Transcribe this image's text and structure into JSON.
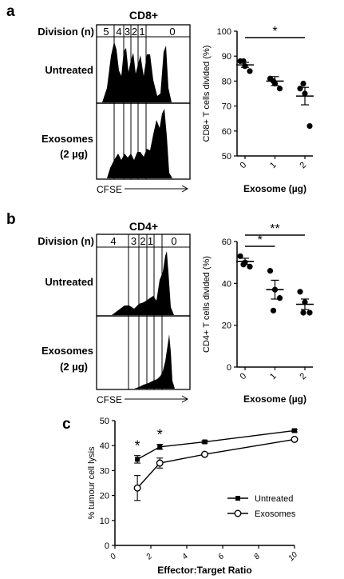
{
  "panels": {
    "a": {
      "letter": "a",
      "cell_label": "CD8+",
      "division_label": "Division (n)",
      "division_numbers": [
        "5",
        "4",
        "3",
        "2",
        "1",
        "0"
      ],
      "row_labels": {
        "untreated": "Untreated",
        "exosomes_line1": "Exosomes",
        "exosomes_line2": "(2 µg)"
      },
      "x_axis_label": "CFSE"
    },
    "b": {
      "letter": "b",
      "cell_label": "CD4+",
      "division_label": "Division (n)",
      "division_numbers": [
        "4",
        "3",
        "2",
        "1",
        "0"
      ],
      "row_labels": {
        "untreated": "Untreated",
        "exosomes_line1": "Exosomes",
        "exosomes_line2": "(2 µg)"
      },
      "x_axis_label": "CFSE"
    },
    "c": {
      "letter": "c"
    }
  },
  "chart_data": [
    {
      "id": "a-scatter",
      "type": "scatter",
      "ylabel": "CD8+ T cells divided (%)",
      "xlabel": "Exosome (µg)",
      "categories": [
        "0",
        "1",
        "2"
      ],
      "ylim": [
        50,
        100
      ],
      "yticks": [
        50,
        60,
        70,
        80,
        90,
        100
      ],
      "points": [
        [
          88,
          86,
          84,
          88
        ],
        [
          81,
          79,
          77,
          80
        ],
        [
          77,
          75,
          62,
          79
        ]
      ],
      "means": [
        86.5,
        80,
        74
      ],
      "errors": [
        1,
        1.8,
        3.5
      ],
      "annotations": [
        {
          "text": "*",
          "from": "0",
          "to": "2"
        }
      ]
    },
    {
      "id": "b-scatter",
      "type": "scatter",
      "ylabel": "CD4+ T cells divided (%)",
      "xlabel": "Exosome (µg)",
      "categories": [
        "0",
        "1",
        "2"
      ],
      "ylim": [
        0,
        60
      ],
      "yticks": [
        0,
        20,
        40,
        60
      ],
      "points": [
        [
          53,
          50,
          48,
          49
        ],
        [
          46,
          37,
          33,
          27
        ],
        [
          36,
          31,
          26,
          26
        ]
      ],
      "means": [
        50.5,
        37,
        30
      ],
      "errors": [
        1.5,
        4.5,
        2.5
      ],
      "annotations": [
        {
          "text": "*",
          "from": "0",
          "to": "1"
        },
        {
          "text": "**",
          "from": "0",
          "to": "2"
        }
      ]
    },
    {
      "id": "c-line",
      "type": "line",
      "ylabel": "% tumour cell lysis",
      "xlabel": "Effector:Target Ratio",
      "xlim": [
        0,
        10
      ],
      "ylim": [
        0,
        50
      ],
      "xticks": [
        0,
        2,
        4,
        6,
        8,
        10
      ],
      "yticks": [
        0,
        10,
        20,
        30,
        40,
        50
      ],
      "legend_position": "right",
      "series": [
        {
          "name": "Untreated",
          "marker": "square",
          "x": [
            1.25,
            2.5,
            5,
            10
          ],
          "y": [
            34.5,
            39.5,
            41.5,
            46
          ],
          "err": [
            1.5,
            1,
            0.5,
            0.5
          ]
        },
        {
          "name": "Exosomes",
          "marker": "circle",
          "x": [
            1.25,
            2.5,
            5,
            10
          ],
          "y": [
            23,
            33,
            36.5,
            42.5
          ],
          "err": [
            5,
            2,
            0.5,
            0.5
          ]
        }
      ],
      "annotations": [
        {
          "text": "*",
          "x": 1.25
        },
        {
          "text": "*",
          "x": 2.5
        }
      ]
    }
  ]
}
